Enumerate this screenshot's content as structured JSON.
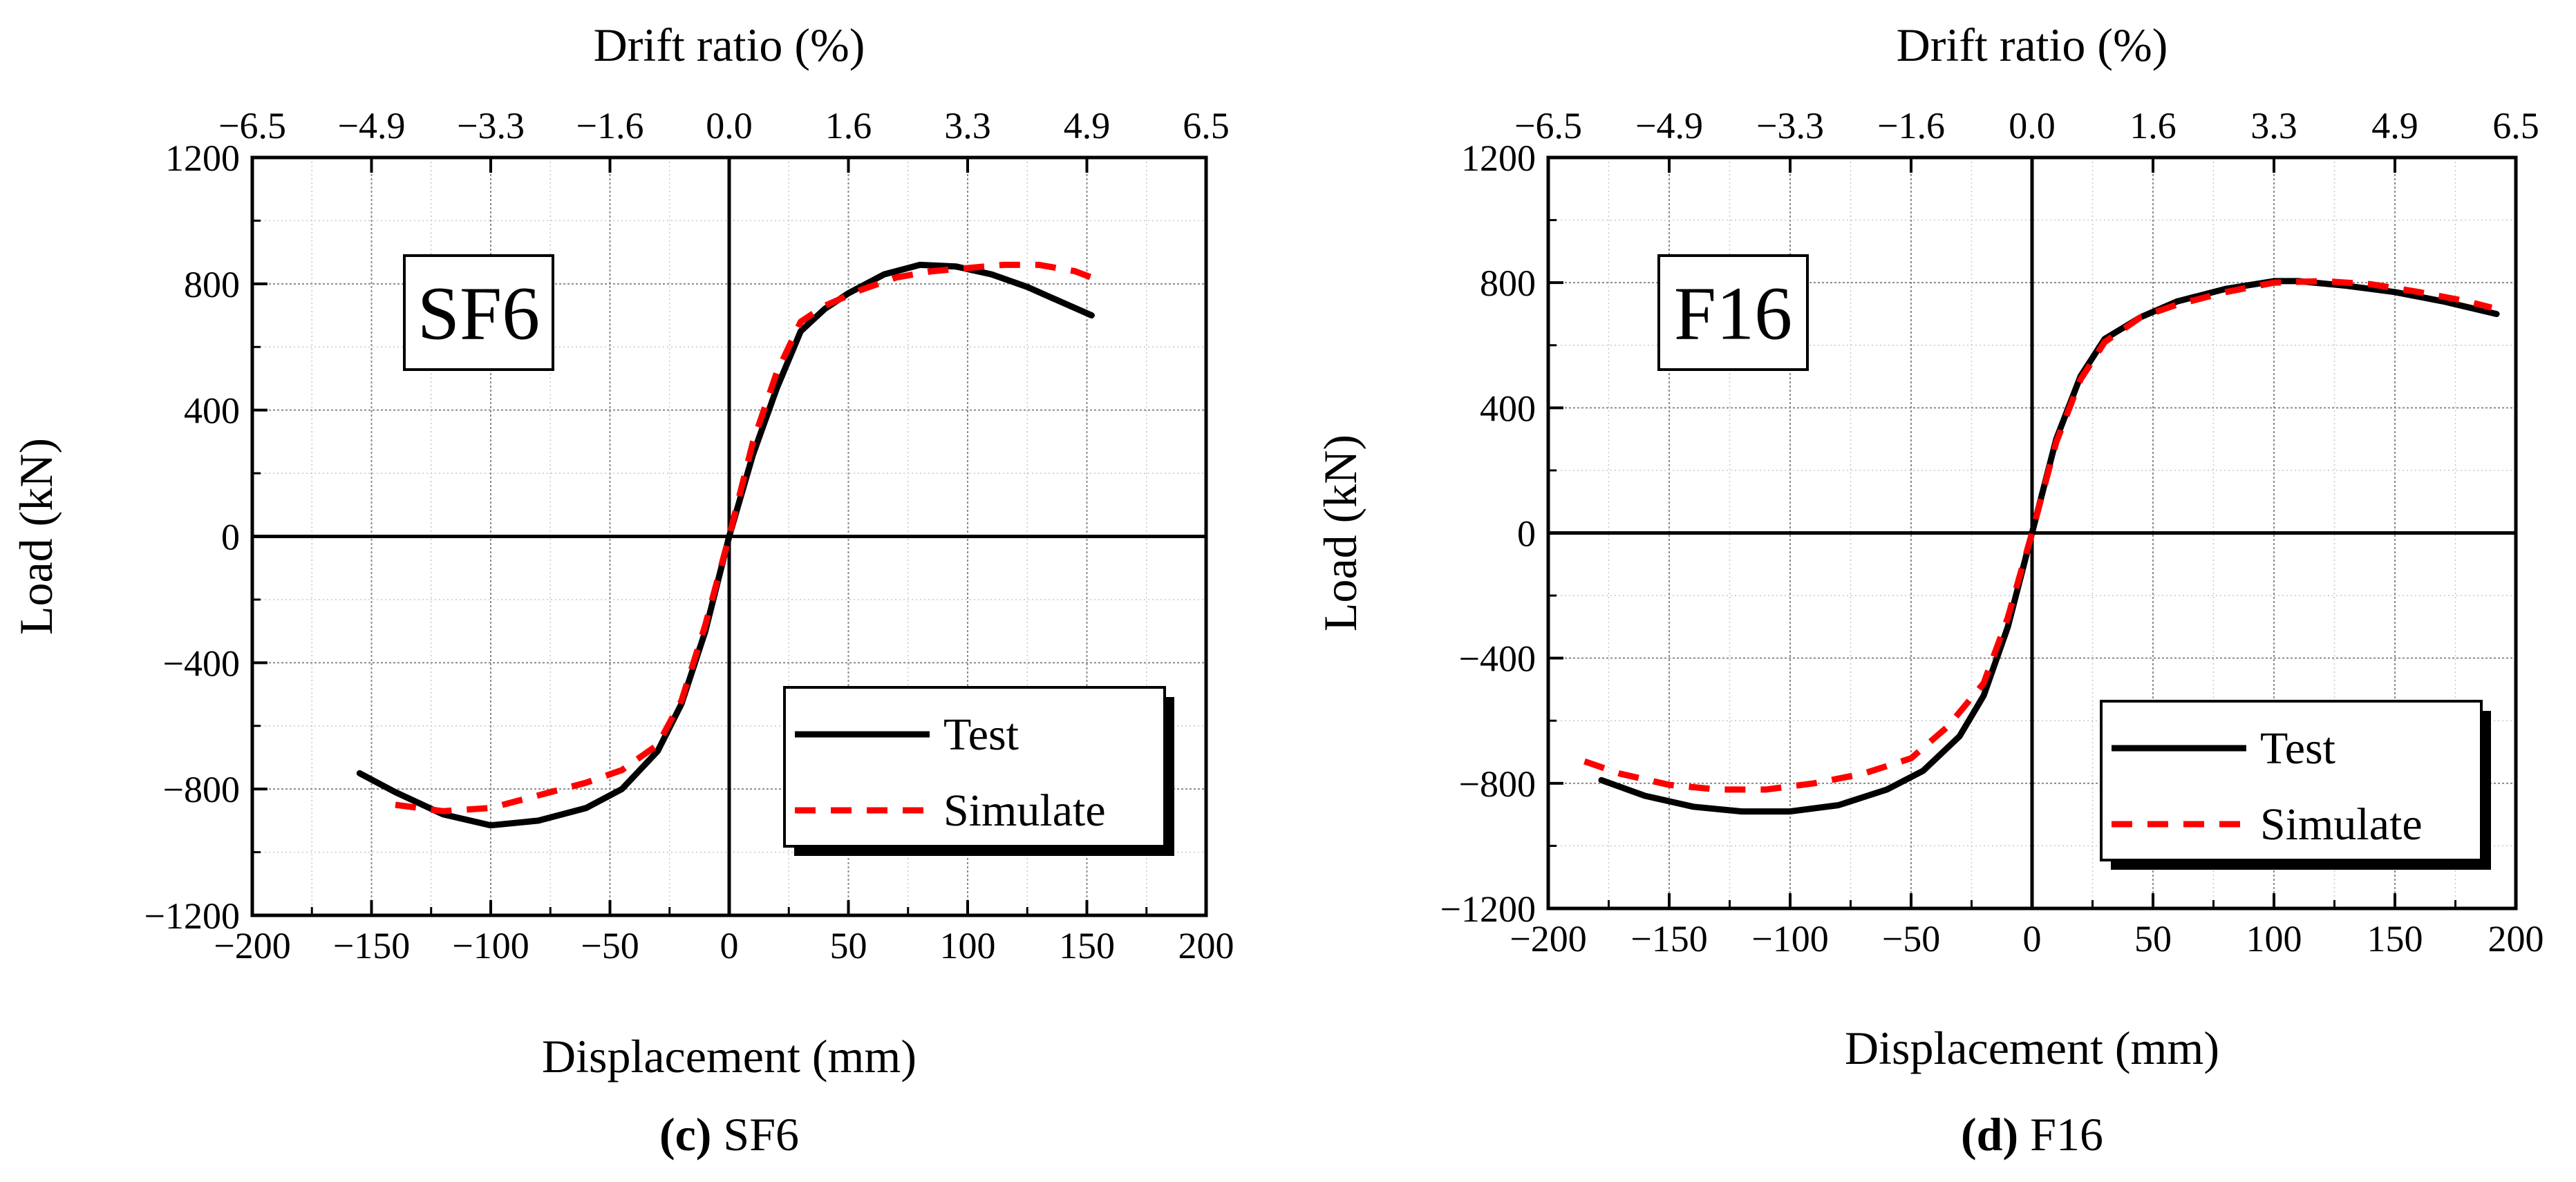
{
  "chart_data": [
    {
      "type": "line",
      "panel_id": "c",
      "caption": {
        "letter": "(c)",
        "name": "SF6"
      },
      "panel_label": "SF6",
      "xlabel": "Displacement (mm)",
      "ylabel": "Load (kN)",
      "top_xlabel": "Drift ratio (%)",
      "xlim": [
        -200,
        200
      ],
      "ylim": [
        -1200,
        1200
      ],
      "xticks": [
        -200,
        -150,
        -100,
        -50,
        0,
        50,
        100,
        150,
        200
      ],
      "xtick_labels": [
        "−200",
        "−150",
        "−100",
        "−50",
        "0",
        "50",
        "100",
        "150",
        "200"
      ],
      "yticks": [
        -1200,
        -800,
        -400,
        0,
        400,
        800,
        1200
      ],
      "ytick_labels": [
        "−1200",
        "−800",
        "−400",
        "0",
        "400",
        "800",
        "1200"
      ],
      "top_ticks": [
        {
          "x": -200,
          "label": "−6.5"
        },
        {
          "x": -150,
          "label": "−4.9"
        },
        {
          "x": -100,
          "label": "−3.3"
        },
        {
          "x": -50,
          "label": "−1.6"
        },
        {
          "x": 0,
          "label": "0.0"
        },
        {
          "x": 50,
          "label": "1.6"
        },
        {
          "x": 100,
          "label": "3.3"
        },
        {
          "x": 150,
          "label": "4.9"
        },
        {
          "x": 200,
          "label": "6.5"
        }
      ],
      "grid": true,
      "legend_position": "bottom-right",
      "series": [
        {
          "name": "Test",
          "color": "#000000",
          "style": "solid",
          "x": [
            -155,
            -140,
            -120,
            -100,
            -80,
            -60,
            -45,
            -30,
            -20,
            -10,
            0,
            10,
            20,
            30,
            40,
            50,
            65,
            80,
            95,
            110,
            125,
            140,
            152
          ],
          "y": [
            -750,
            -810,
            -880,
            -915,
            -900,
            -860,
            -800,
            -680,
            -530,
            -300,
            0,
            260,
            470,
            650,
            720,
            770,
            830,
            860,
            855,
            830,
            790,
            740,
            700
          ]
        },
        {
          "name": "Simulate",
          "color": "#ff0000",
          "style": "dashed",
          "x": [
            -140,
            -120,
            -100,
            -80,
            -60,
            -45,
            -30,
            -20,
            -10,
            0,
            10,
            20,
            30,
            40,
            55,
            70,
            85,
            100,
            115,
            130,
            145,
            152
          ],
          "y": [
            -850,
            -870,
            -860,
            -820,
            -780,
            -740,
            -660,
            -520,
            -280,
            0,
            300,
            520,
            680,
            730,
            780,
            820,
            840,
            850,
            860,
            860,
            840,
            820
          ]
        }
      ]
    },
    {
      "type": "line",
      "panel_id": "d",
      "caption": {
        "letter": "(d)",
        "name": "F16"
      },
      "panel_label": "F16",
      "xlabel": "Displacement (mm)",
      "ylabel": "Load (kN)",
      "top_xlabel": "Drift ratio (%)",
      "xlim": [
        -200,
        200
      ],
      "ylim": [
        -1200,
        1200
      ],
      "xticks": [
        -200,
        -150,
        -100,
        -50,
        0,
        50,
        100,
        150,
        200
      ],
      "xtick_labels": [
        "−200",
        "−150",
        "−100",
        "−50",
        "0",
        "50",
        "100",
        "150",
        "200"
      ],
      "yticks": [
        -1200,
        -800,
        -400,
        0,
        400,
        800,
        1200
      ],
      "ytick_labels": [
        "−1200",
        "−800",
        "−400",
        "0",
        "400",
        "800",
        "1200"
      ],
      "top_ticks": [
        {
          "x": -200,
          "label": "−6.5"
        },
        {
          "x": -150,
          "label": "−4.9"
        },
        {
          "x": -100,
          "label": "−3.3"
        },
        {
          "x": -50,
          "label": "−1.6"
        },
        {
          "x": 0,
          "label": "0.0"
        },
        {
          "x": 50,
          "label": "1.6"
        },
        {
          "x": 100,
          "label": "3.3"
        },
        {
          "x": 150,
          "label": "4.9"
        },
        {
          "x": 200,
          "label": "6.5"
        }
      ],
      "grid": true,
      "legend_position": "bottom-right",
      "series": [
        {
          "name": "Test",
          "color": "#000000",
          "style": "solid",
          "x": [
            -178,
            -160,
            -140,
            -120,
            -100,
            -80,
            -60,
            -45,
            -30,
            -20,
            -10,
            0,
            10,
            20,
            30,
            45,
            60,
            80,
            100,
            110,
            130,
            150,
            170,
            192
          ],
          "y": [
            -790,
            -840,
            -875,
            -890,
            -890,
            -870,
            -820,
            -760,
            -650,
            -520,
            -300,
            0,
            300,
            500,
            620,
            690,
            740,
            780,
            805,
            805,
            790,
            770,
            740,
            700
          ]
        },
        {
          "name": "Simulate",
          "color": "#ff0000",
          "style": "dashed",
          "x": [
            -185,
            -170,
            -150,
            -130,
            -110,
            -90,
            -70,
            -50,
            -35,
            -20,
            -10,
            0,
            10,
            20,
            30,
            45,
            60,
            80,
            100,
            120,
            140,
            160,
            180,
            190
          ],
          "y": [
            -730,
            -770,
            -805,
            -820,
            -820,
            -800,
            -770,
            -720,
            -620,
            -480,
            -270,
            0,
            290,
            490,
            610,
            690,
            730,
            770,
            800,
            805,
            795,
            770,
            740,
            720
          ]
        }
      ]
    }
  ]
}
